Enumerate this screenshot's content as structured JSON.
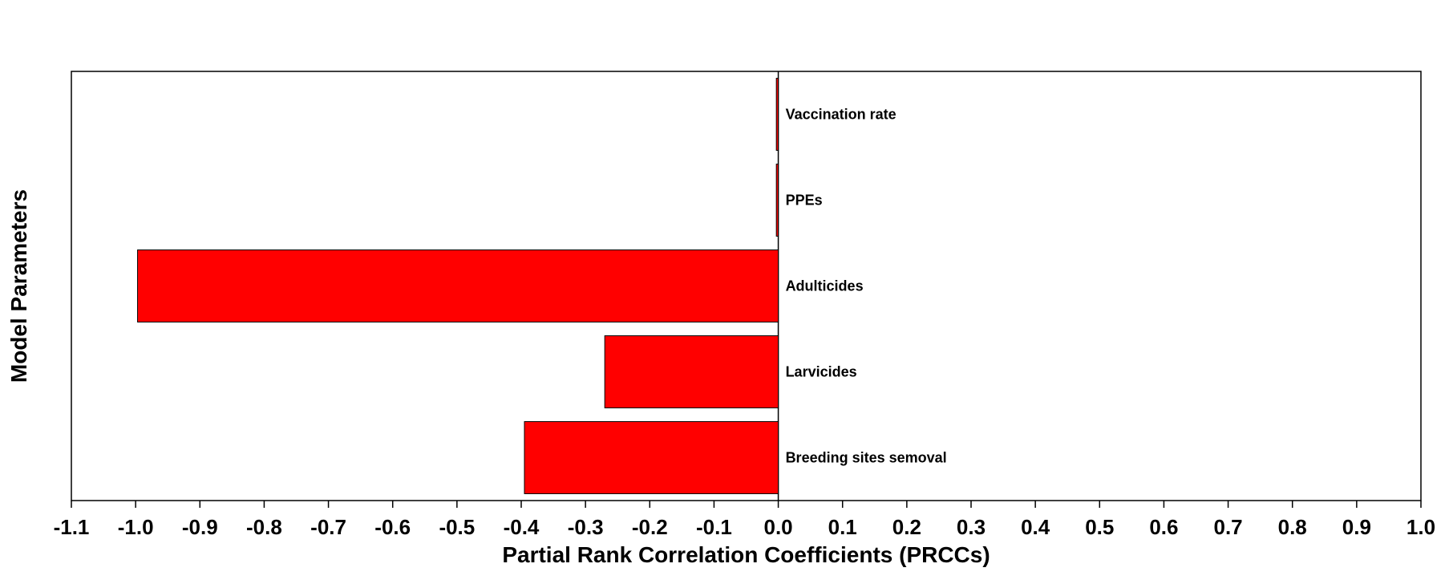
{
  "chart_data": {
    "type": "bar",
    "orientation": "horizontal",
    "title": "",
    "xlabel": "Partial Rank Correlation Coefficients (PRCCs)",
    "ylabel": "Model Parameters",
    "xlim": [
      -1.1,
      1.0
    ],
    "xticks": [
      "-1.1",
      "-1.0",
      "-0.9",
      "-0.8",
      "-0.7",
      "-0.6",
      "-0.5",
      "-0.4",
      "-0.3",
      "-0.2",
      "-0.1",
      "0.0",
      "0.1",
      "0.2",
      "0.3",
      "0.4",
      "0.5",
      "0.6",
      "0.7",
      "0.8",
      "0.9",
      "1.0"
    ],
    "categories": [
      "Vaccination rate",
      "PPEs",
      "Adulticides",
      "Larvicides",
      "Breeding sites semoval"
    ],
    "values": [
      -0.003,
      -0.003,
      -0.997,
      -0.27,
      -0.395
    ],
    "bar_color": "#ff0000",
    "grid": false
  }
}
